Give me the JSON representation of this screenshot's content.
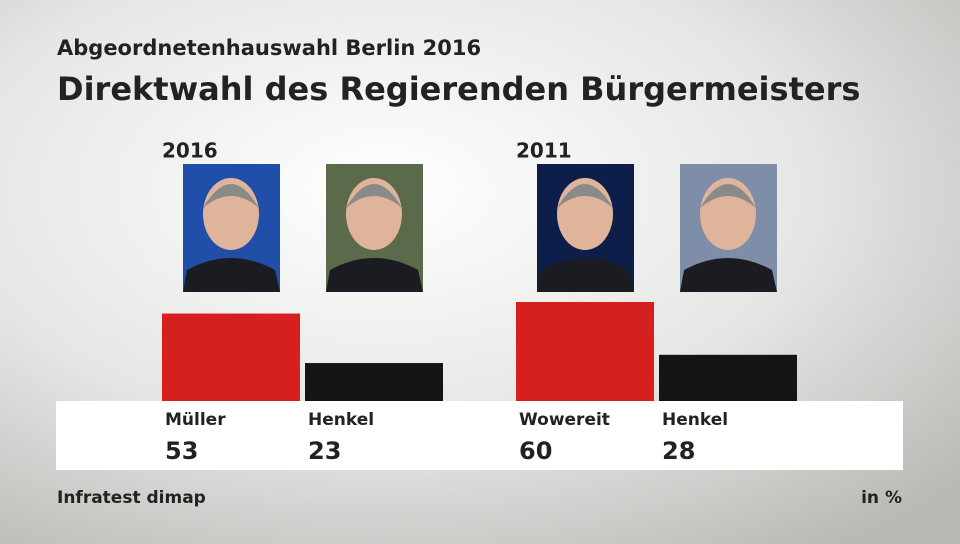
{
  "chart_data": {
    "type": "bar",
    "subtitle": "Abgeordnetenhauswahl Berlin 2016",
    "title": "Direktwahl des Regierenden Bürgermeisters",
    "groups": [
      {
        "name": "2016",
        "categories": [
          "Müller",
          "Henkel"
        ],
        "values": [
          53,
          23
        ],
        "colors": [
          "#d6201f",
          "#141414"
        ]
      },
      {
        "name": "2011",
        "categories": [
          "Wowereit",
          "Henkel"
        ],
        "values": [
          60,
          28
        ],
        "colors": [
          "#d6201f",
          "#141414"
        ]
      }
    ],
    "source": "Infratest dimap",
    "unit": "in %"
  }
}
